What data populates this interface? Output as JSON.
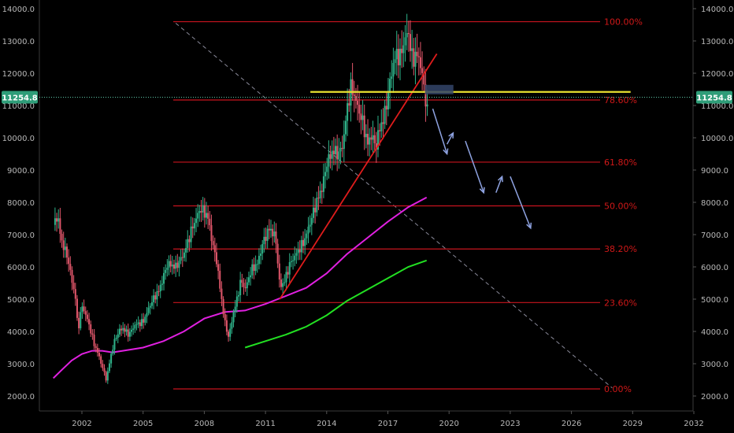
{
  "chart_data": {
    "type": "candlestick",
    "y_ticks": [
      "2000.0",
      "3000.0",
      "4000.0",
      "5000.0",
      "6000.0",
      "7000.0",
      "8000.0",
      "9000.0",
      "10000.0",
      "11000.0",
      "12000.0",
      "13000.0",
      "14000.0"
    ],
    "x_ticks": [
      "2002",
      "2005",
      "2008",
      "2011",
      "2014",
      "2017",
      "2020",
      "2023",
      "2026",
      "2029",
      "2032"
    ],
    "ylim": [
      1500,
      14300
    ],
    "current_price": "11254.8",
    "fib_levels": [
      {
        "label": "100.00%",
        "value": 13596
      },
      {
        "label": "78.60%",
        "value": 11170
      },
      {
        "label": "61.80%",
        "value": 9245
      },
      {
        "label": "50.00%",
        "value": 7890
      },
      {
        "label": "38.20%",
        "value": 6555
      },
      {
        "label": "23.60%",
        "value": 4895
      },
      {
        "label": "0.00%",
        "value": 2220
      }
    ],
    "price_series": [
      [
        2000.6,
        7300
      ],
      [
        2000.8,
        7600
      ],
      [
        2001.0,
        6800
      ],
      [
        2001.3,
        6300
      ],
      [
        2001.5,
        5600
      ],
      [
        2001.7,
        5000
      ],
      [
        2001.8,
        4000
      ],
      [
        2002.0,
        4800
      ],
      [
        2002.2,
        4500
      ],
      [
        2002.4,
        4100
      ],
      [
        2002.6,
        3600
      ],
      [
        2002.8,
        3300
      ],
      [
        2003.0,
        2900
      ],
      [
        2003.2,
        2500
      ],
      [
        2003.4,
        3200
      ],
      [
        2003.6,
        3700
      ],
      [
        2003.8,
        4000
      ],
      [
        2004.0,
        4100
      ],
      [
        2004.3,
        3900
      ],
      [
        2004.6,
        4200
      ],
      [
        2005.0,
        4300
      ],
      [
        2005.4,
        4900
      ],
      [
        2005.8,
        5300
      ],
      [
        2006.2,
        6100
      ],
      [
        2006.6,
        6000
      ],
      [
        2007.0,
        6400
      ],
      [
        2007.4,
        7200
      ],
      [
        2007.8,
        7800
      ],
      [
        2008.0,
        7700
      ],
      [
        2008.2,
        7500
      ],
      [
        2008.4,
        6700
      ],
      [
        2008.6,
        6200
      ],
      [
        2008.8,
        5200
      ],
      [
        2009.0,
        4300
      ],
      [
        2009.2,
        3800
      ],
      [
        2009.4,
        4500
      ],
      [
        2009.6,
        5000
      ],
      [
        2009.8,
        5600
      ],
      [
        2010.0,
        5300
      ],
      [
        2010.3,
        5900
      ],
      [
        2010.6,
        6100
      ],
      [
        2010.9,
        6800
      ],
      [
        2011.2,
        7200
      ],
      [
        2011.5,
        6900
      ],
      [
        2011.7,
        5400
      ],
      [
        2011.9,
        5500
      ],
      [
        2012.2,
        6100
      ],
      [
        2012.6,
        6500
      ],
      [
        2012.9,
        6800
      ],
      [
        2013.2,
        7400
      ],
      [
        2013.5,
        8000
      ],
      [
        2013.8,
        8500
      ],
      [
        2014.0,
        9200
      ],
      [
        2014.3,
        9600
      ],
      [
        2014.6,
        9500
      ],
      [
        2014.8,
        9800
      ],
      [
        2015.0,
        10900
      ],
      [
        2015.2,
        11600
      ],
      [
        2015.4,
        11200
      ],
      [
        2015.6,
        10800
      ],
      [
        2015.8,
        10400
      ],
      [
        2016.0,
        9800
      ],
      [
        2016.2,
        10100
      ],
      [
        2016.4,
        9700
      ],
      [
        2016.6,
        10300
      ],
      [
        2016.8,
        10600
      ],
      [
        2017.0,
        11300
      ],
      [
        2017.2,
        12100
      ],
      [
        2017.4,
        12600
      ],
      [
        2017.6,
        12500
      ],
      [
        2017.8,
        13000
      ],
      [
        2018.0,
        13300
      ],
      [
        2018.2,
        12400
      ],
      [
        2018.4,
        12600
      ],
      [
        2018.6,
        12300
      ],
      [
        2018.8,
        11400
      ],
      [
        2018.9,
        11000
      ],
      [
        2019.0,
        10500
      ]
    ],
    "ma_long": [
      [
        2000.6,
        2550
      ],
      [
        2001.0,
        2800
      ],
      [
        2001.5,
        3100
      ],
      [
        2002.0,
        3300
      ],
      [
        2002.5,
        3400
      ],
      [
        2003.0,
        3400
      ],
      [
        2003.5,
        3350
      ],
      [
        2004.0,
        3400
      ],
      [
        2005.0,
        3500
      ],
      [
        2006.0,
        3700
      ],
      [
        2007.0,
        4000
      ],
      [
        2008.0,
        4400
      ],
      [
        2009.0,
        4600
      ],
      [
        2010.0,
        4650
      ],
      [
        2011.0,
        4850
      ],
      [
        2012.0,
        5100
      ],
      [
        2013.0,
        5350
      ],
      [
        2014.0,
        5800
      ],
      [
        2015.0,
        6400
      ],
      [
        2016.0,
        6900
      ],
      [
        2017.0,
        7400
      ],
      [
        2018.0,
        7850
      ],
      [
        2018.9,
        8150
      ]
    ],
    "ma_short": [
      [
        2010.0,
        3500
      ],
      [
        2011.0,
        3700
      ],
      [
        2012.0,
        3900
      ],
      [
        2013.0,
        4150
      ],
      [
        2014.0,
        4500
      ],
      [
        2015.0,
        4950
      ],
      [
        2016.0,
        5300
      ],
      [
        2017.0,
        5650
      ],
      [
        2018.0,
        6000
      ],
      [
        2018.9,
        6200
      ]
    ],
    "diagonal_line": [
      [
        2006.6,
        13550
      ],
      [
        2028.0,
        2250
      ]
    ],
    "trend_line": [
      [
        2011.7,
        5000
      ],
      [
        2019.4,
        12600
      ]
    ],
    "resistance_line": {
      "x0": 2013.2,
      "x1": 2028.9,
      "y": 11420
    },
    "projection_arrows": [
      [
        [
          2019.2,
          10900
        ],
        [
          2019.9,
          9500
        ]
      ],
      [
        [
          2019.9,
          9800
        ],
        [
          2020.2,
          10150
        ]
      ],
      [
        [
          2020.8,
          9900
        ],
        [
          2021.7,
          8300
        ]
      ],
      [
        [
          2022.3,
          8300
        ],
        [
          2022.6,
          8800
        ]
      ],
      [
        [
          2023.0,
          8800
        ],
        [
          2024.0,
          7200
        ]
      ]
    ]
  }
}
